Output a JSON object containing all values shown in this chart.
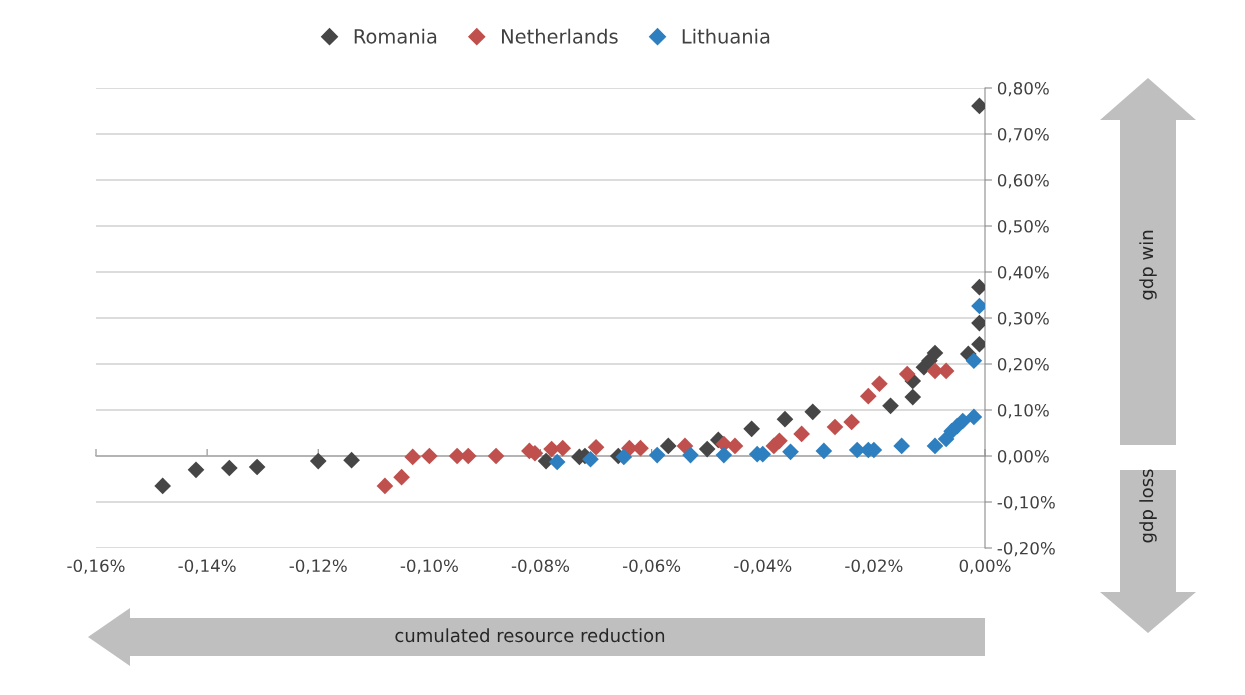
{
  "chart_data": {
    "type": "scatter",
    "series": [
      {
        "name": "Romania",
        "color": "#464646",
        "x": [
          -0.148,
          -0.142,
          -0.136,
          -0.131,
          -0.12,
          -0.114,
          -0.079,
          -0.073,
          -0.072,
          -0.066,
          -0.057,
          -0.05,
          -0.048,
          -0.042,
          -0.036,
          -0.031,
          -0.017,
          -0.013,
          -0.013,
          -0.011,
          -0.01,
          -0.009,
          -0.003,
          -0.001,
          -0.001,
          -0.001,
          -0.001
        ],
        "values": [
          -0.065,
          -0.03,
          -0.026,
          -0.024,
          -0.011,
          -0.009,
          -0.011,
          -0.002,
          0.0,
          0.0,
          0.022,
          0.015,
          0.035,
          0.059,
          0.08,
          0.096,
          0.109,
          0.128,
          0.163,
          0.193,
          0.207,
          0.224,
          0.222,
          0.243,
          0.289,
          0.367,
          0.761
        ]
      },
      {
        "name": "Netherlands",
        "color": "#c0504d",
        "x": [
          -0.108,
          -0.105,
          -0.103,
          -0.1,
          -0.095,
          -0.093,
          -0.088,
          -0.081,
          -0.082,
          -0.078,
          -0.076,
          -0.07,
          -0.064,
          -0.062,
          -0.054,
          -0.047,
          -0.045,
          -0.038,
          -0.037,
          -0.033,
          -0.027,
          -0.024,
          -0.021,
          -0.019,
          -0.014,
          -0.009,
          -0.007
        ],
        "values": [
          -0.065,
          -0.046,
          -0.002,
          0.0,
          0.0,
          0.0,
          0.0,
          0.006,
          0.011,
          0.015,
          0.017,
          0.019,
          0.017,
          0.017,
          0.022,
          0.026,
          0.022,
          0.022,
          0.033,
          0.048,
          0.063,
          0.074,
          0.13,
          0.157,
          0.178,
          0.185,
          0.185
        ]
      },
      {
        "name": "Lithuania",
        "color": "#2e7fc0",
        "x": [
          -0.077,
          -0.071,
          -0.065,
          -0.059,
          -0.053,
          -0.047,
          -0.041,
          -0.04,
          -0.035,
          -0.029,
          -0.023,
          -0.021,
          -0.02,
          -0.015,
          -0.009,
          -0.007,
          -0.006,
          -0.005,
          -0.004,
          -0.002,
          -0.002,
          -0.001
        ],
        "values": [
          -0.013,
          -0.007,
          -0.002,
          0.002,
          0.002,
          0.002,
          0.004,
          0.004,
          0.009,
          0.011,
          0.013,
          0.013,
          0.013,
          0.022,
          0.022,
          0.037,
          0.054,
          0.065,
          0.076,
          0.085,
          0.207,
          0.326
        ]
      }
    ],
    "marker": "diamond",
    "xlim": [
      -0.16,
      0.0
    ],
    "xticks": [
      {
        "value": -0.16,
        "label": "-0,16%"
      },
      {
        "value": -0.14,
        "label": "-0,14%"
      },
      {
        "value": -0.12,
        "label": "-0,12%"
      },
      {
        "value": -0.1,
        "label": "-0,10%"
      },
      {
        "value": -0.08,
        "label": "-0,08%"
      },
      {
        "value": -0.06,
        "label": "-0,06%"
      },
      {
        "value": -0.04,
        "label": "-0,04%"
      },
      {
        "value": -0.02,
        "label": "-0,02%"
      },
      {
        "value": 0.0,
        "label": "0,00%"
      }
    ],
    "ylim": [
      -0.2,
      0.8
    ],
    "yticks": [
      {
        "value": -0.2,
        "label": "-0,20%"
      },
      {
        "value": -0.1,
        "label": "-0,10%"
      },
      {
        "value": 0.0,
        "label": "0,00%"
      },
      {
        "value": 0.1,
        "label": "0,10%"
      },
      {
        "value": 0.2,
        "label": "0,20%"
      },
      {
        "value": 0.3,
        "label": "0,30%"
      },
      {
        "value": 0.4,
        "label": "0,40%"
      },
      {
        "value": 0.5,
        "label": "0,50%"
      },
      {
        "value": 0.6,
        "label": "0,60%"
      },
      {
        "value": 0.7,
        "label": "0,70%"
      },
      {
        "value": 0.8,
        "label": "0,80%"
      }
    ],
    "grid": "y",
    "legend": "top",
    "annotations": [
      "gdp win",
      "gdp loss",
      "cumulated resource reduction"
    ]
  }
}
